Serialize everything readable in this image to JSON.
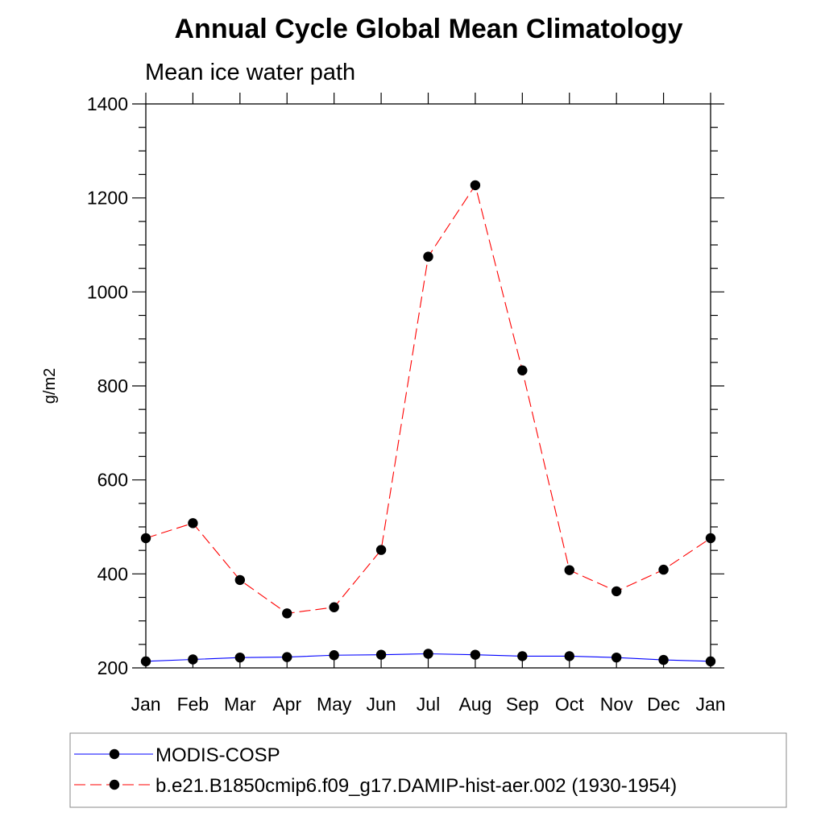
{
  "chart_data": {
    "type": "line",
    "title": "Annual Cycle Global Mean Climatology",
    "subtitle": "Mean ice water path",
    "xlabel": "",
    "ylabel": "g/m2",
    "categories": [
      "Jan",
      "Feb",
      "Mar",
      "Apr",
      "May",
      "Jun",
      "Jul",
      "Aug",
      "Sep",
      "Oct",
      "Nov",
      "Dec",
      "Jan"
    ],
    "ylim": [
      200,
      1400
    ],
    "yticks": [
      200,
      400,
      600,
      800,
      1000,
      1200,
      1400
    ],
    "legend_position": "bottom",
    "series": [
      {
        "name": "MODIS-COSP",
        "color": "#0000ff",
        "line_style": "solid",
        "marker": "filled-circle",
        "values": [
          214,
          218,
          222,
          223,
          227,
          228,
          230,
          228,
          225,
          225,
          222,
          217,
          214
        ]
      },
      {
        "name": "b.e21.B1850cmip6.f09_g17.DAMIP-hist-aer.002 (1930-1954)",
        "color": "#ff0000",
        "line_style": "dashed",
        "marker": "filled-circle",
        "values": [
          476,
          508,
          387,
          316,
          329,
          451,
          1075,
          1227,
          833,
          408,
          363,
          409,
          476
        ]
      }
    ]
  }
}
